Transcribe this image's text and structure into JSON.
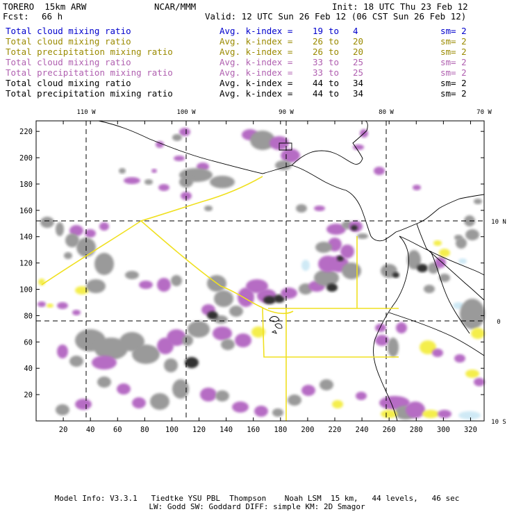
{
  "header": {
    "model": "TORERO  15km ARW",
    "center": "NCAR/MMM",
    "init": "Init: 18 UTC Thu 23 Feb 12",
    "fcst_label": "Fcst:",
    "fcst_value": "66 h",
    "valid": "Valid: 12 UTC Sun 26 Feb 12 (06 CST Sun 26 Feb 12)"
  },
  "legend": [
    {
      "name": "Total cloud mixing ratio",
      "kidx": "Avg. k-index =",
      "from": "19",
      "to_word": "to",
      "to": "4",
      "sm": "sm= 2",
      "color": "#0000cc"
    },
    {
      "name": "Total cloud mixing ratio",
      "kidx": "Avg. k-index =",
      "from": "26",
      "to_word": "to",
      "to": "20",
      "sm": "sm= 2",
      "color": "#9a8a00"
    },
    {
      "name": "Total precipitation mixing ratio",
      "kidx": "Avg. k-index =",
      "from": "26",
      "to_word": "to",
      "to": "20",
      "sm": "sm= 2",
      "color": "#9a8a00"
    },
    {
      "name": "Total cloud mixing ratio",
      "kidx": "Avg. k-index =",
      "from": "33",
      "to_word": "to",
      "to": "25",
      "sm": "sm= 2",
      "color": "#b060b0"
    },
    {
      "name": "Total precipitation mixing ratio",
      "kidx": "Avg. k-index =",
      "from": "33",
      "to_word": "to",
      "to": "25",
      "sm": "sm= 2",
      "color": "#b060b0"
    },
    {
      "name": "Total cloud mixing ratio",
      "kidx": "Avg. k-index =",
      "from": "44",
      "to_word": "to",
      "to": "34",
      "sm": "sm= 2",
      "color": "#000000"
    },
    {
      "name": "Total precipitation mixing ratio",
      "kidx": "Avg. k-index =",
      "from": "44",
      "to_word": "to",
      "to": "34",
      "sm": "sm= 2",
      "color": "#000000"
    }
  ],
  "map": {
    "lon_labels": [
      "110 W",
      "100 W",
      "90 W",
      "80 W",
      "70 W"
    ],
    "lat_labels": [
      "10 N",
      "0",
      "10 S"
    ],
    "x_ticks": [
      "20",
      "40",
      "60",
      "80",
      "100",
      "120",
      "140",
      "160",
      "180",
      "200",
      "220",
      "240",
      "260",
      "280",
      "300",
      "320"
    ],
    "y_ticks": [
      "20",
      "40",
      "60",
      "80",
      "100",
      "120",
      "140",
      "160",
      "180",
      "200",
      "220"
    ],
    "colors": {
      "gray": "#9a9a9a",
      "purple": "#b66cc4",
      "yellow": "#f4ee4c",
      "lightblue": "#cfe9f5",
      "dark": "#303030",
      "box": "#f0e020"
    }
  },
  "footer": {
    "line1": "Model Info: V3.3.1   Tiedtke YSU PBL  Thompson    Noah LSM  15 km,   44 levels,   46 sec",
    "line2": "LW: Godd SW: Goddard DIFF: simple KM: 2D Smagor"
  }
}
